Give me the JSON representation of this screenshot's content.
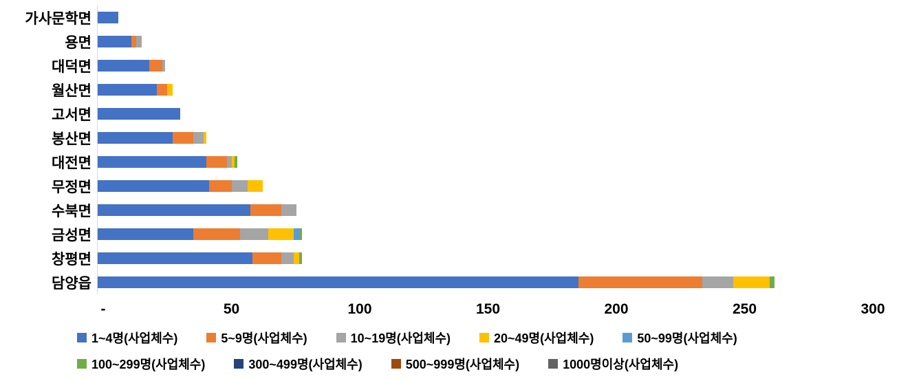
{
  "chart_data": {
    "type": "bar",
    "subtype": "horizontal-stacked",
    "title": "",
    "xlabel": "",
    "ylabel": "",
    "xlim": [
      0,
      300
    ],
    "grid": false,
    "legend_position": "bottom",
    "x_ticks": [
      "-",
      "50",
      "100",
      "150",
      "200",
      "250",
      "300"
    ],
    "categories": [
      "가사문학면",
      "용면",
      "대덕면",
      "월산면",
      "고서면",
      "봉산면",
      "대전면",
      "무정면",
      "수북면",
      "금성면",
      "창평면",
      "담양읍"
    ],
    "series": [
      {
        "name": "1~4명(사업체수)",
        "color": "#4472C4",
        "values": [
          8,
          13,
          20,
          23,
          32,
          29,
          42,
          43,
          59,
          37,
          60,
          186
        ]
      },
      {
        "name": "5~9명(사업체수)",
        "color": "#ED7D31",
        "values": [
          0,
          2,
          5,
          4,
          0,
          8,
          8,
          9,
          12,
          18,
          11,
          48
        ]
      },
      {
        "name": "10~19명(사업체수)",
        "color": "#A5A5A5",
        "values": [
          0,
          2,
          1,
          0,
          0,
          4,
          2,
          6,
          6,
          11,
          5,
          12
        ]
      },
      {
        "name": "20~49명(사업체수)",
        "color": "#FFC000",
        "values": [
          0,
          0,
          0,
          2,
          0,
          1,
          1,
          6,
          0,
          10,
          2,
          14
        ]
      },
      {
        "name": "50~99명(사업체수)",
        "color": "#5B9BD5",
        "values": [
          0,
          0,
          0,
          0,
          0,
          0,
          0,
          0,
          0,
          2,
          0,
          0
        ]
      },
      {
        "name": "100~299명(사업체수)",
        "color": "#70AD47",
        "values": [
          0,
          0,
          0,
          0,
          0,
          0,
          1,
          0,
          0,
          1,
          1,
          2
        ]
      },
      {
        "name": "300~499명(사업체수)",
        "color": "#264478",
        "values": [
          0,
          0,
          0,
          0,
          0,
          0,
          0,
          0,
          0,
          0,
          0,
          0
        ]
      },
      {
        "name": "500~999명(사업체수)",
        "color": "#9E480E",
        "values": [
          0,
          0,
          0,
          0,
          0,
          0,
          0,
          0,
          0,
          0,
          0,
          0
        ]
      },
      {
        "name": "1000명이상(사업체수)",
        "color": "#636363",
        "values": [
          0,
          0,
          0,
          0,
          0,
          0,
          0,
          0,
          0,
          0,
          0,
          0
        ]
      }
    ],
    "legend_rows": [
      [
        0,
        1,
        2,
        3,
        4
      ],
      [
        5,
        6,
        7,
        8
      ]
    ]
  }
}
